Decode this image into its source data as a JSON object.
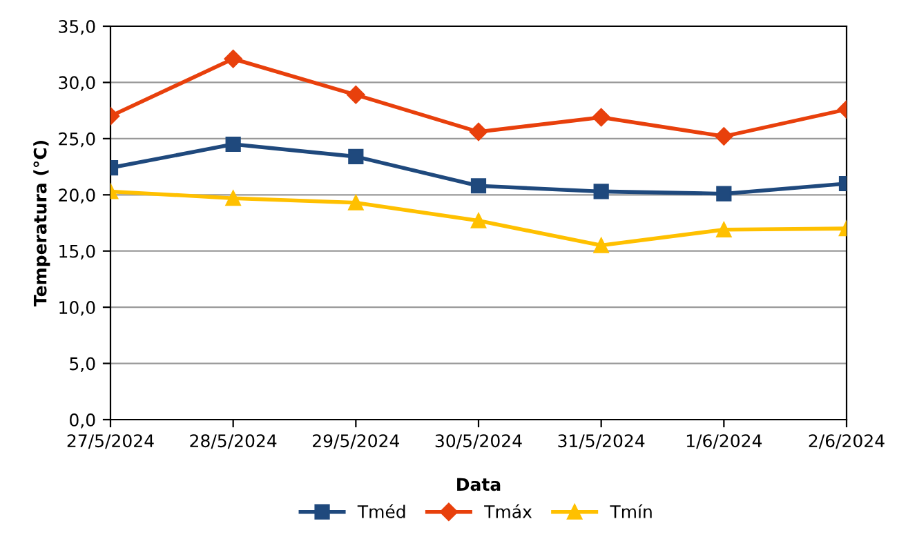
{
  "chart_data": {
    "type": "line",
    "xlabel": "Data",
    "ylabel": "Temperatura (°C)",
    "categories": [
      "27/5/2024",
      "28/5/2024",
      "29/5/2024",
      "30/5/2024",
      "31/5/2024",
      "1/6/2024",
      "2/6/2024"
    ],
    "series": [
      {
        "name": "Tméd",
        "color": "#1f497d",
        "marker": "square",
        "values": [
          22.4,
          24.5,
          23.4,
          20.8,
          20.3,
          20.1,
          21.0
        ]
      },
      {
        "name": "Tmáx",
        "color": "#e8400c",
        "marker": "diamond",
        "values": [
          27.0,
          32.1,
          28.9,
          25.6,
          26.9,
          25.2,
          27.6
        ]
      },
      {
        "name": "Tmín",
        "color": "#ffc000",
        "marker": "triangle",
        "values": [
          20.3,
          19.7,
          19.3,
          17.7,
          15.5,
          16.9,
          17.0
        ]
      }
    ],
    "ylim": [
      0,
      35
    ],
    "yticks": [
      {
        "value": 0,
        "label": "0,0"
      },
      {
        "value": 5,
        "label": "5,0"
      },
      {
        "value": 10,
        "label": "10,0"
      },
      {
        "value": 15,
        "label": "15,0"
      },
      {
        "value": 20,
        "label": "20,0"
      },
      {
        "value": 25,
        "label": "25,0"
      },
      {
        "value": 30,
        "label": "30,0"
      },
      {
        "value": 35,
        "label": "35,0"
      }
    ],
    "grid": "y",
    "legend": "bottom",
    "line_style": "solid"
  }
}
